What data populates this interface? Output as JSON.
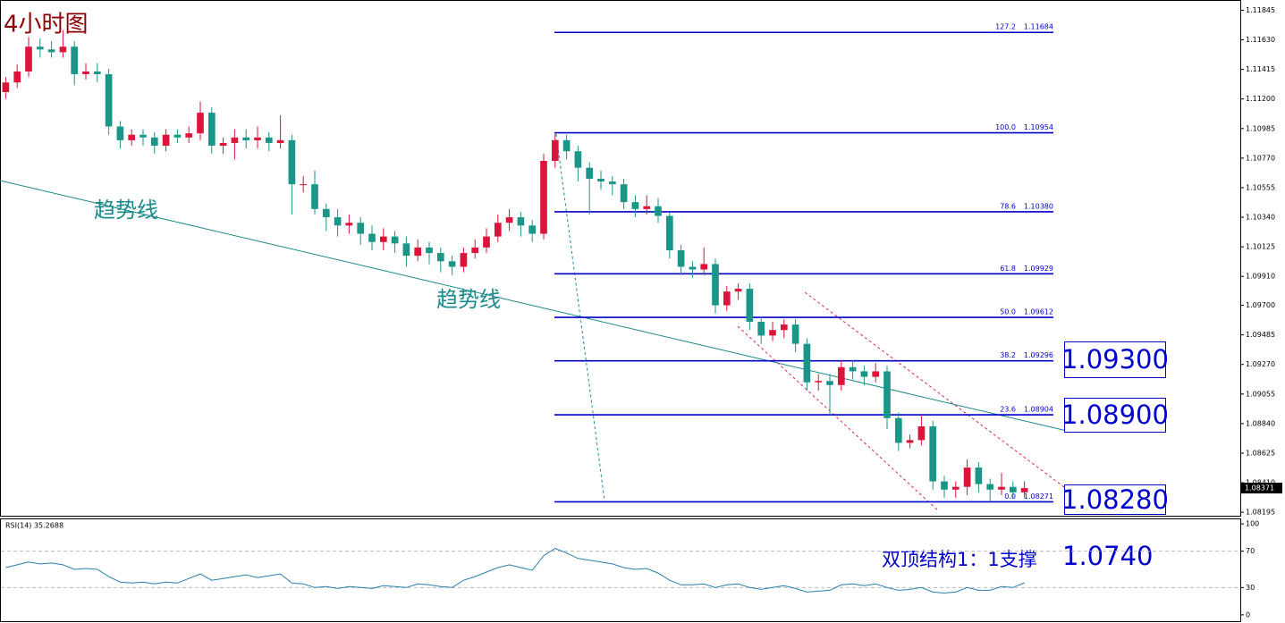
{
  "chart_data": {
    "type": "candlestick",
    "title": "4小时图",
    "ohlc": [
      [
        1.1125,
        1.1136,
        1.112,
        1.1132
      ],
      [
        1.1132,
        1.1145,
        1.1128,
        1.114
      ],
      [
        1.114,
        1.1165,
        1.1136,
        1.1158
      ],
      [
        1.1158,
        1.1164,
        1.115,
        1.1156
      ],
      [
        1.1156,
        1.1162,
        1.115,
        1.1154
      ],
      [
        1.1154,
        1.117,
        1.115,
        1.1158
      ],
      [
        1.1158,
        1.1162,
        1.113,
        1.1138
      ],
      [
        1.1138,
        1.1146,
        1.1134,
        1.114
      ],
      [
        1.114,
        1.1146,
        1.1132,
        1.1138
      ],
      [
        1.1138,
        1.1142,
        1.1094,
        1.11
      ],
      [
        1.11,
        1.1104,
        1.1084,
        1.109
      ],
      [
        1.109,
        1.1098,
        1.1086,
        1.1094
      ],
      [
        1.1094,
        1.1098,
        1.1086,
        1.1092
      ],
      [
        1.1092,
        1.1096,
        1.108,
        1.1086
      ],
      [
        1.1086,
        1.1098,
        1.1082,
        1.1094
      ],
      [
        1.1094,
        1.1098,
        1.1088,
        1.1092
      ],
      [
        1.1092,
        1.11,
        1.1088,
        1.1095
      ],
      [
        1.1095,
        1.1118,
        1.109,
        1.111
      ],
      [
        1.111,
        1.1114,
        1.108,
        1.1086
      ],
      [
        1.1086,
        1.1092,
        1.108,
        1.1088
      ],
      [
        1.1088,
        1.1098,
        1.1076,
        1.1092
      ],
      [
        1.1092,
        1.1098,
        1.1084,
        1.109
      ],
      [
        1.109,
        1.11,
        1.1084,
        1.1092
      ],
      [
        1.1092,
        1.1096,
        1.1082,
        1.1088
      ],
      [
        1.1088,
        1.1108,
        1.1084,
        1.109
      ],
      [
        1.109,
        1.1094,
        1.1036,
        1.1058
      ],
      [
        1.1058,
        1.1064,
        1.1052,
        1.1058
      ],
      [
        1.1058,
        1.1068,
        1.1036,
        1.104
      ],
      [
        1.104,
        1.1044,
        1.1024,
        1.1034
      ],
      [
        1.1034,
        1.104,
        1.102,
        1.1028
      ],
      [
        1.1028,
        1.1036,
        1.1022,
        1.103
      ],
      [
        1.103,
        1.1034,
        1.1014,
        1.1022
      ],
      [
        1.1022,
        1.1028,
        1.101,
        1.1016
      ],
      [
        1.1016,
        1.1026,
        1.101,
        1.102
      ],
      [
        1.102,
        1.1024,
        1.1008,
        1.1015
      ],
      [
        1.1015,
        1.102,
        1.0998,
        1.1006
      ],
      [
        1.1006,
        1.1018,
        1.1002,
        1.1012
      ],
      [
        1.1012,
        1.1016,
        1.1,
        1.1008
      ],
      [
        1.1008,
        1.1012,
        1.0994,
        1.1002
      ],
      [
        1.1002,
        1.1006,
        1.0992,
        1.0998
      ],
      [
        1.0998,
        1.1012,
        1.0994,
        1.1008
      ],
      [
        1.1008,
        1.1018,
        1.1004,
        1.1012
      ],
      [
        1.1012,
        1.1026,
        1.1008,
        1.102
      ],
      [
        1.102,
        1.1036,
        1.1016,
        1.103
      ],
      [
        1.103,
        1.104,
        1.1024,
        1.1034
      ],
      [
        1.1034,
        1.1038,
        1.102,
        1.1028
      ],
      [
        1.1028,
        1.1032,
        1.1016,
        1.1022
      ],
      [
        1.1022,
        1.108,
        1.1018,
        1.1075
      ],
      [
        1.1075,
        1.10954,
        1.107,
        1.109
      ],
      [
        1.109,
        1.1094,
        1.1076,
        1.1082
      ],
      [
        1.1082,
        1.1086,
        1.106,
        1.107
      ],
      [
        1.107,
        1.1074,
        1.1036,
        1.1062
      ],
      [
        1.1062,
        1.1068,
        1.1054,
        1.106
      ],
      [
        1.106,
        1.1064,
        1.105,
        1.1058
      ],
      [
        1.1058,
        1.1062,
        1.104,
        1.1045
      ],
      [
        1.1045,
        1.105,
        1.1034,
        1.104
      ],
      [
        1.104,
        1.105,
        1.1036,
        1.1042
      ],
      [
        1.1042,
        1.1048,
        1.103,
        1.1035
      ],
      [
        1.1035,
        1.1038,
        1.1004,
        1.101
      ],
      [
        1.101,
        1.1014,
        1.0992,
        1.0998
      ],
      [
        1.0998,
        1.1002,
        1.099,
        1.0996
      ],
      [
        1.0996,
        1.1012,
        1.0992,
        1.1
      ],
      [
        1.1,
        1.1004,
        1.0964,
        1.097
      ],
      [
        1.097,
        1.0984,
        1.0966,
        1.098
      ],
      [
        1.098,
        1.0986,
        1.0974,
        1.0982
      ],
      [
        1.0982,
        1.0986,
        1.0952,
        1.0958
      ],
      [
        1.0958,
        1.0962,
        1.0942,
        1.0948
      ],
      [
        1.0948,
        1.0958,
        1.0944,
        1.0952
      ],
      [
        1.0952,
        1.096,
        1.0946,
        1.0956
      ],
      [
        1.0956,
        1.096,
        1.0936,
        1.0942
      ],
      [
        1.0942,
        1.0946,
        1.0908,
        1.0914
      ],
      [
        1.0914,
        1.092,
        1.0908,
        1.0915
      ],
      [
        1.0915,
        1.092,
        1.089,
        1.0912
      ],
      [
        1.0912,
        1.093,
        1.0908,
        1.0925
      ],
      [
        1.0925,
        1.093,
        1.0916,
        1.0922
      ],
      [
        1.0922,
        1.0926,
        1.0912,
        1.0918
      ],
      [
        1.0918,
        1.0928,
        1.0914,
        1.0922
      ],
      [
        1.0922,
        1.0926,
        1.088,
        1.0888
      ],
      [
        1.0888,
        1.0892,
        1.0864,
        1.087
      ],
      [
        1.087,
        1.0876,
        1.0866,
        1.0872
      ],
      [
        1.0872,
        1.089,
        1.0868,
        1.0882
      ],
      [
        1.0882,
        1.0886,
        1.0836,
        1.0842
      ],
      [
        1.0842,
        1.0846,
        1.083,
        1.0836
      ],
      [
        1.0836,
        1.0842,
        1.083,
        1.0838
      ],
      [
        1.0838,
        1.0858,
        1.0832,
        1.0852
      ],
      [
        1.0852,
        1.0856,
        1.0834,
        1.084
      ],
      [
        1.084,
        1.0844,
        1.08271,
        1.0836
      ],
      [
        1.0836,
        1.0848,
        1.0832,
        1.0838
      ],
      [
        1.0838,
        1.0842,
        1.083,
        1.0834
      ],
      [
        1.0834,
        1.0842,
        1.083,
        1.08371
      ]
    ],
    "up_color": "#dc143c",
    "down_color": "#1a9688",
    "ylim": [
      1.0817,
      1.119
    ],
    "yticks": [
      1.11845,
      {
        "value": 1.1163,
        "label": "1.11630"
      },
      1.11415,
      {
        "value": 1.112,
        "label": "1.11200"
      },
      1.10985,
      {
        "value": 1.1077,
        "label": "1.10770"
      },
      1.10555,
      {
        "value": 1.1034,
        "label": "1.10340"
      },
      1.10125,
      {
        "value": 1.0991,
        "label": "1.09910"
      },
      {
        "value": 1.097,
        "label": "1.09700"
      },
      1.09485,
      {
        "value": 1.0927,
        "label": "1.09270"
      },
      1.09055,
      {
        "value": 1.0884,
        "label": "1.08840"
      },
      1.08625,
      {
        "value": 1.0841,
        "label": "1.08410"
      },
      1.08195
    ],
    "last_price": 1.08371,
    "fib_color": "#0000cc",
    "fib_levels": [
      {
        "ratio": "127.2",
        "price": 1.11684
      },
      {
        "ratio": "100.0",
        "price": 1.10954
      },
      {
        "ratio": "78.6",
        "price": {
          "value": 1.1038,
          "label": "1.10380"
        }
      },
      {
        "ratio": "61.8",
        "price": 1.09929
      },
      {
        "ratio": "50.0",
        "price": 1.09612
      },
      {
        "ratio": "38.2",
        "price": 1.09296
      },
      {
        "ratio": "23.6",
        "price": 1.08904
      },
      {
        "ratio": "0.0",
        "price": 1.08271
      }
    ],
    "trend_labels": [
      "趋势线",
      "趋势线"
    ],
    "level_boxes": [
      "1.09300",
      "1.08900",
      "1.08280"
    ],
    "note": "双顶结构1：1支撑",
    "note_value": "1.0740",
    "rsi": {
      "label": "RSI(14) 35.2688",
      "color": "#2a7fa8",
      "ylim": [
        -7,
        106
      ],
      "yticks": [
        0,
        30,
        70,
        100
      ],
      "levels": [
        30,
        70
      ],
      "values": [
        52,
        55,
        58,
        56,
        57,
        55,
        50,
        51,
        50,
        42,
        36,
        35,
        36,
        34,
        36,
        35,
        40,
        45,
        38,
        40,
        42,
        44,
        41,
        43,
        45,
        35,
        34,
        30,
        31,
        29,
        31,
        30,
        29,
        32,
        31,
        30,
        34,
        33,
        31,
        30,
        38,
        42,
        47,
        52,
        55,
        52,
        49,
        65,
        73,
        68,
        62,
        60,
        58,
        56,
        52,
        50,
        51,
        46,
        38,
        33,
        33,
        34,
        30,
        33,
        34,
        30,
        28,
        30,
        32,
        29,
        25,
        26,
        27,
        33,
        34,
        32,
        34,
        30,
        27,
        28,
        30,
        25,
        24,
        25,
        30,
        27,
        27,
        31,
        30,
        35.2688
      ]
    }
  }
}
